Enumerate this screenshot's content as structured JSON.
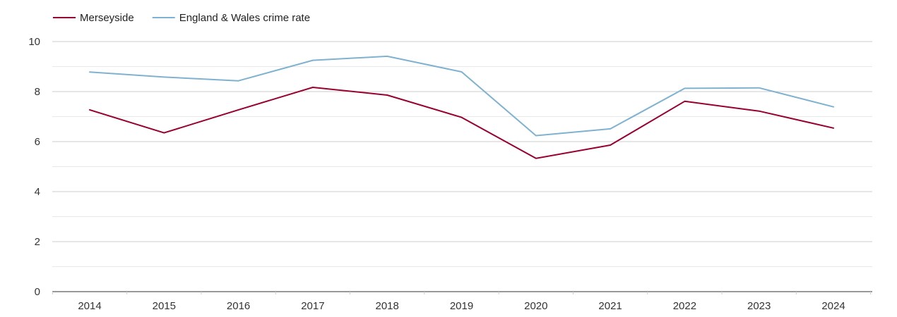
{
  "chart_data": {
    "type": "line",
    "title": "",
    "xlabel": "",
    "ylabel": "",
    "categories": [
      "2014",
      "2015",
      "2016",
      "2017",
      "2018",
      "2019",
      "2020",
      "2021",
      "2022",
      "2023",
      "2024"
    ],
    "ylim": [
      0,
      10
    ],
    "yticks": [
      "0",
      "2",
      "4",
      "6",
      "8",
      "10"
    ],
    "grid": true,
    "legend_position": "top-left",
    "series": [
      {
        "name": "Merseyside",
        "color": "#99002e",
        "values": [
          7.27,
          6.35,
          7.27,
          8.17,
          7.86,
          6.97,
          5.33,
          5.86,
          7.61,
          7.22,
          6.54
        ]
      },
      {
        "name": "England & Wales crime rate",
        "color": "#7fb2d0",
        "values": [
          8.78,
          8.58,
          8.43,
          9.25,
          9.41,
          8.79,
          6.24,
          6.51,
          8.13,
          8.15,
          7.39
        ]
      }
    ]
  }
}
